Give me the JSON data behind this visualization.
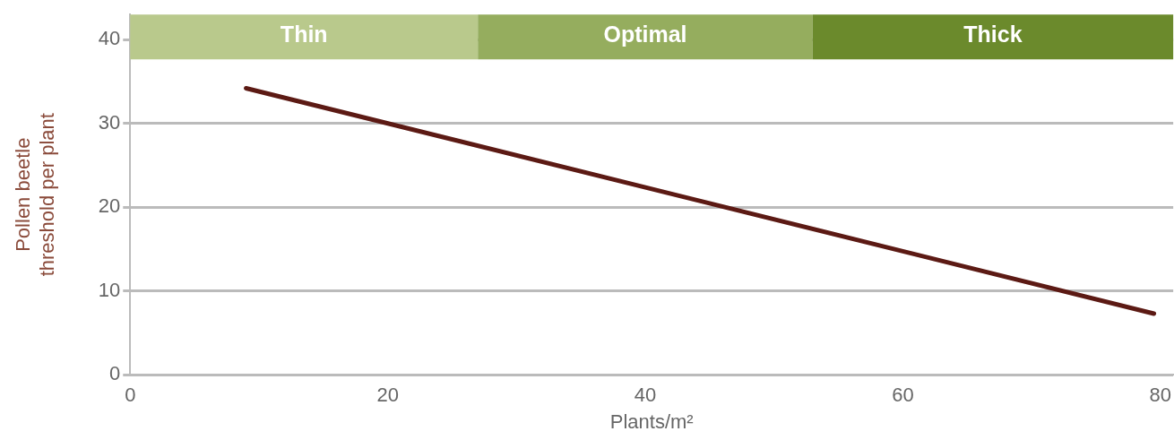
{
  "chart_data": {
    "type": "line",
    "xlabel": "Plants/m²",
    "ylabel": "Pollen beetle\nthreshold per plant",
    "series": [
      {
        "color": "#5c1a14",
        "x": [
          9,
          79.5
        ],
        "values": [
          34.2,
          7.3
        ]
      }
    ],
    "xlim": [
      0,
      81
    ],
    "xticks": [
      0,
      20,
      40,
      60,
      80
    ],
    "ylim": [
      0,
      43
    ],
    "yticks": [
      0,
      10,
      20,
      30,
      40
    ],
    "grid": "y",
    "bands": [
      {
        "axis": "x",
        "from": 0,
        "to": 27,
        "label": "Thin",
        "color": "#b9c98c"
      },
      {
        "axis": "x",
        "from": 27,
        "to": 53,
        "label": "Optimal",
        "color": "#95ad5e"
      },
      {
        "axis": "x",
        "from": 53,
        "to": 81,
        "label": "Thick",
        "color": "#6b8a2c"
      }
    ]
  }
}
